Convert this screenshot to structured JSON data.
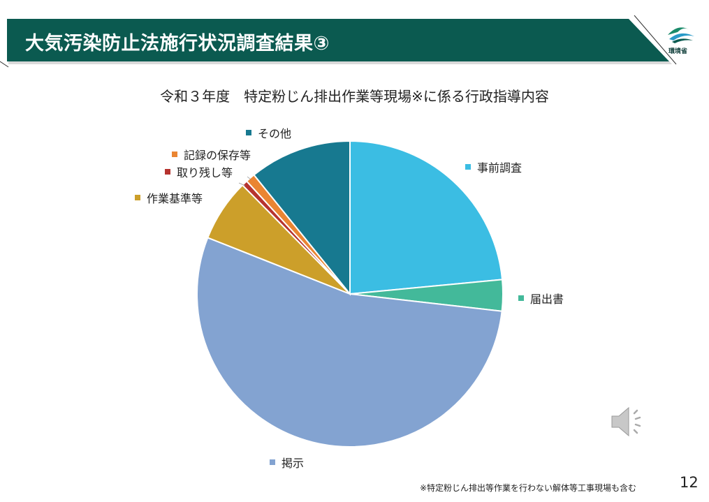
{
  "slide": {
    "title": "大気汚染防止法施行状況調査結果③",
    "logo_text": "環境省",
    "footnote": "※特定粉じん排出等作業を行わない解体等工事現場も含む",
    "page_number": "12"
  },
  "colors": {
    "title_bar": "#0b5a50",
    "title_text": "#ffffff"
  },
  "icons": {
    "audio": "speaker-icon",
    "logo": "ministry-logo-icon"
  },
  "chart_data": {
    "type": "pie",
    "title": "令和３年度　特定粉じん排出作業等現場※に係る行政指導内容",
    "start_angle_deg": 0,
    "direction": "clockwise",
    "slices": [
      {
        "label": "事前調査",
        "value": 23.5,
        "color": "#3bbde3"
      },
      {
        "label": "届出書",
        "value": 3.3,
        "color": "#43b99a"
      },
      {
        "label": "掲示",
        "value": 54.2,
        "color": "#83a3d1"
      },
      {
        "label": "作業基準等",
        "value": 6.6,
        "color": "#cc9f2a"
      },
      {
        "label": "取り残し等",
        "value": 0.6,
        "color": "#b6332f"
      },
      {
        "label": "記録の保存等",
        "value": 1.0,
        "color": "#ea8532"
      },
      {
        "label": "その他",
        "value": 10.8,
        "color": "#177990"
      }
    ]
  }
}
